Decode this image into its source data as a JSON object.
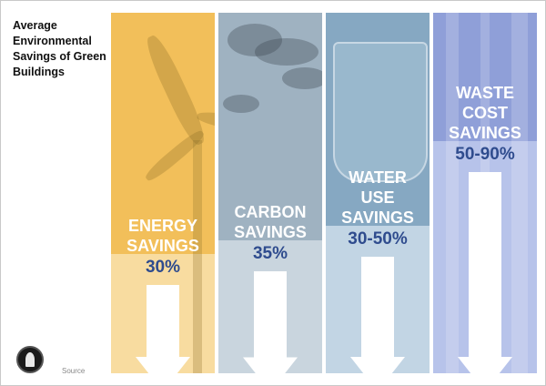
{
  "title": "Average Environmental Savings of Green Buildings",
  "source_label": "Source",
  "icons": {
    "logo": "usgbc-leaf-logo"
  },
  "colors": {
    "energy": "#f2bf5a",
    "energy_light": "#f8dca0",
    "carbon": "#9fb2c1",
    "carbon_light": "#c9d5de",
    "water": "#86a8c2",
    "water_light": "#c2d5e4",
    "waste": "#8f9fd8",
    "waste_light": "#b7c3ea",
    "value_text": "#2f4c8e"
  },
  "chart_data": {
    "type": "bar",
    "title": "Average Environmental Savings of Green Buildings",
    "categories": [
      "ENERGY SAVINGS",
      "CARBON SAVINGS",
      "WATER USE SAVINGS",
      "WASTE COST SAVINGS"
    ],
    "value_labels": [
      "30%",
      "35%",
      "30-50%",
      "50-90%"
    ],
    "values": [
      30,
      35,
      40,
      70
    ],
    "ranges": [
      [
        30,
        30
      ],
      [
        35,
        35
      ],
      [
        30,
        50
      ],
      [
        50,
        90
      ]
    ],
    "label_lines": [
      [
        "ENERGY",
        "SAVINGS"
      ],
      [
        "CARBON",
        "SAVINGS"
      ],
      [
        "WATER",
        "USE",
        "SAVINGS"
      ],
      [
        "WASTE",
        "COST",
        "SAVINGS"
      ]
    ]
  }
}
